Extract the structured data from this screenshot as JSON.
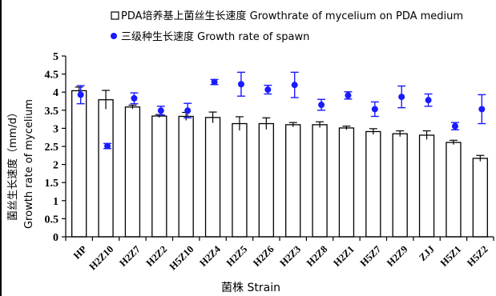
{
  "chart_data": {
    "type": "bar",
    "categories": [
      "HP",
      "H2Z10",
      "H2Z7",
      "H2Z2",
      "H5Z10",
      "H2Z4",
      "H2Z5",
      "H2Z6",
      "H2Z3",
      "H2Z8",
      "H2Z1",
      "H5Z7",
      "H2Z9",
      "ZJJ",
      "H5Z1",
      "H5Z2"
    ],
    "series": [
      {
        "name": "PDA培养基上菌丝生长速度 Growthrate of mycelium on PDA medium",
        "kind": "bar",
        "color": "#ffffff",
        "values": [
          4.04,
          3.79,
          3.59,
          3.34,
          3.33,
          3.3,
          3.13,
          3.13,
          3.1,
          3.1,
          3.01,
          2.91,
          2.85,
          2.81,
          2.61,
          2.17
        ],
        "errors": [
          0.1,
          0.26,
          0.05,
          0.04,
          0.11,
          0.15,
          0.19,
          0.16,
          0.06,
          0.08,
          0.05,
          0.08,
          0.08,
          0.12,
          0.06,
          0.08
        ]
      },
      {
        "name": "三级种生长速度 Growth rate of spawn",
        "kind": "scatter",
        "color": "#1a1aff",
        "values": [
          3.93,
          2.51,
          3.83,
          3.49,
          3.49,
          4.28,
          4.22,
          4.07,
          4.2,
          3.65,
          3.91,
          3.53,
          3.87,
          3.78,
          3.06,
          3.53
        ],
        "errors": [
          0.25,
          0.07,
          0.15,
          0.12,
          0.2,
          0.07,
          0.33,
          0.12,
          0.35,
          0.15,
          0.1,
          0.2,
          0.3,
          0.17,
          0.1,
          0.4
        ]
      }
    ],
    "ylabel_cn": "菌丝生长速度（mm/d）",
    "ylabel_en": "Growth rate of mycelium",
    "xlabel": "菌株 Strain",
    "ylim": [
      0,
      5
    ],
    "yticks": [
      "0",
      "0.5",
      "1",
      "1.5",
      "2",
      "2.5",
      "3",
      "3.5",
      "4",
      "4.5",
      "5"
    ],
    "grid": false,
    "legend_position": "top"
  }
}
